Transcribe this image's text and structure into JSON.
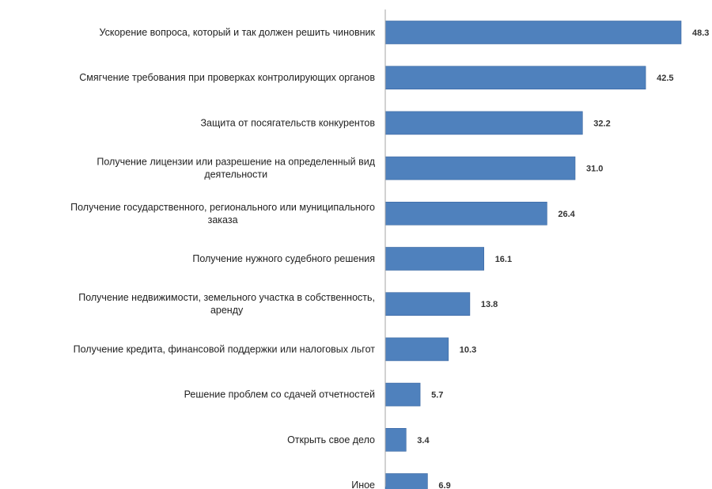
{
  "chart_data": {
    "type": "bar",
    "orientation": "horizontal",
    "title": "",
    "xlabel": "",
    "ylabel": "",
    "xlim": [
      0,
      50
    ],
    "grid": false,
    "legend": "none",
    "bar_color": "#4f81bd",
    "categories": [
      [
        "Ускорение вопроса, который и так должен решить чиновник"
      ],
      [
        "Смягчение требования при проверках контролирующих органов"
      ],
      [
        "Защита от посягательств конкурентов"
      ],
      [
        "Получение лицензии или разрешение на определенный вид",
        "деятельности"
      ],
      [
        "Получение государственного, регионального или муниципального",
        "заказа"
      ],
      [
        "Получение нужного судебного решения"
      ],
      [
        "Получение недвижимости, земельного участка в собственность,",
        "аренду"
      ],
      [
        "Получение кредита, финансовой поддержки или налоговых льгот"
      ],
      [
        "Решение проблем со сдачей отчетностей"
      ],
      [
        "Открыть свое дело"
      ],
      [
        "Иное"
      ]
    ],
    "values": [
      48.3,
      42.5,
      32.2,
      31.0,
      26.4,
      16.1,
      13.8,
      10.3,
      5.7,
      3.4,
      6.9
    ],
    "value_labels": [
      "48.3",
      "42.5",
      "32.2",
      "31.0",
      "26.4",
      "16.1",
      "13.8",
      "10.3",
      "5.7",
      "3.4",
      "6.9"
    ]
  }
}
